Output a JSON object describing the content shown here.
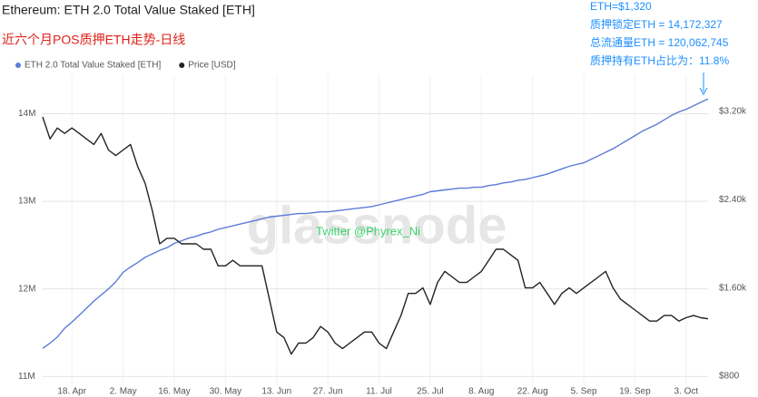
{
  "chart_data": {
    "type": "line",
    "title": "Ethereum: ETH 2.0 Total Value Staked [ETH]",
    "subtitle": "近六个月POS质押ETH走势-日线",
    "watermark": "glassnode",
    "credit": "Twitter @Phyrex_Ni",
    "annotations": [
      "ETH=$1,320",
      "质押锁定ETH = 14,172,327",
      "总流通量ETH = 120,062,745",
      "质押持有ETH占比为：11.8%"
    ],
    "categories": [
      null,
      null,
      null,
      null,
      "18. Apr",
      null,
      null,
      null,
      null,
      null,
      null,
      "2. May",
      null,
      null,
      null,
      null,
      null,
      null,
      "16. May",
      null,
      null,
      null,
      null,
      null,
      null,
      "30. May",
      null,
      null,
      null,
      null,
      null,
      null,
      "13. Jun",
      null,
      null,
      null,
      null,
      null,
      null,
      "27. Jun",
      null,
      null,
      null,
      null,
      null,
      null,
      "11. Jul",
      null,
      null,
      null,
      null,
      null,
      null,
      "25. Jul",
      null,
      null,
      null,
      null,
      null,
      null,
      "8. Aug",
      null,
      null,
      null,
      null,
      null,
      null,
      "22. Aug",
      null,
      null,
      null,
      null,
      null,
      null,
      "5. Sep",
      null,
      null,
      null,
      null,
      null,
      null,
      "19. Sep",
      null,
      null,
      null,
      null,
      null,
      null,
      "3. Oct",
      null,
      null,
      null
    ],
    "series": [
      {
        "name": "ETH 2.0 Total Value Staked [ETH]",
        "color": "#5b7bd8",
        "axis": "y",
        "values": [
          11.32,
          11.38,
          11.45,
          11.55,
          11.62,
          11.7,
          11.78,
          11.86,
          11.93,
          12.0,
          12.08,
          12.19,
          12.25,
          12.3,
          12.36,
          12.4,
          12.44,
          12.47,
          12.52,
          12.55,
          12.58,
          12.6,
          12.63,
          12.65,
          12.68,
          12.7,
          12.72,
          12.74,
          12.76,
          12.78,
          12.8,
          12.82,
          12.83,
          12.84,
          12.85,
          12.86,
          12.86,
          12.87,
          12.88,
          12.88,
          12.89,
          12.9,
          12.91,
          12.92,
          12.93,
          12.94,
          12.96,
          12.98,
          13.0,
          13.02,
          13.04,
          13.06,
          13.08,
          13.11,
          13.12,
          13.13,
          13.14,
          13.15,
          13.15,
          13.16,
          13.16,
          13.18,
          13.19,
          13.21,
          13.22,
          13.24,
          13.25,
          13.27,
          13.29,
          13.31,
          13.34,
          13.37,
          13.4,
          13.42,
          13.44,
          13.48,
          13.52,
          13.56,
          13.6,
          13.65,
          13.7,
          13.75,
          13.8,
          13.84,
          13.88,
          13.93,
          13.98,
          14.02,
          14.05,
          14.09,
          14.13,
          14.17
        ]
      },
      {
        "name": "Price [USD]",
        "color": "#222222",
        "axis": "y2",
        "values": [
          3150,
          2950,
          3050,
          3000,
          3050,
          3000,
          2950,
          2900,
          3000,
          2850,
          2800,
          2850,
          2900,
          2700,
          2550,
          2300,
          2000,
          2050,
          2050,
          2000,
          2000,
          2000,
          1950,
          1950,
          1800,
          1800,
          1850,
          1800,
          1800,
          1800,
          1800,
          1500,
          1200,
          1150,
          1000,
          1100,
          1100,
          1150,
          1250,
          1200,
          1100,
          1050,
          1100,
          1150,
          1200,
          1200,
          1100,
          1050,
          1200,
          1350,
          1550,
          1550,
          1600,
          1450,
          1650,
          1750,
          1700,
          1650,
          1650,
          1700,
          1750,
          1850,
          1950,
          1950,
          1900,
          1850,
          1600,
          1600,
          1650,
          1550,
          1450,
          1550,
          1600,
          1550,
          1600,
          1650,
          1700,
          1750,
          1600,
          1500,
          1450,
          1400,
          1350,
          1300,
          1300,
          1350,
          1350,
          1300,
          1330,
          1350,
          1330,
          1320
        ]
      }
    ],
    "ylim": [
      10.9,
      14.45
    ],
    "yticks": [
      {
        "value": 11,
        "label": "11M"
      },
      {
        "value": 12,
        "label": "12M"
      },
      {
        "value": 13,
        "label": "13M"
      },
      {
        "value": 14,
        "label": "14M"
      }
    ],
    "y2lim": [
      718,
      3536
    ],
    "y2ticks": [
      {
        "value": 800,
        "label": "$800"
      },
      {
        "value": 1600,
        "label": "$1.60k"
      },
      {
        "value": 2400,
        "label": "$2.40k"
      },
      {
        "value": 3200,
        "label": "$3.20k"
      }
    ],
    "grid": true
  }
}
